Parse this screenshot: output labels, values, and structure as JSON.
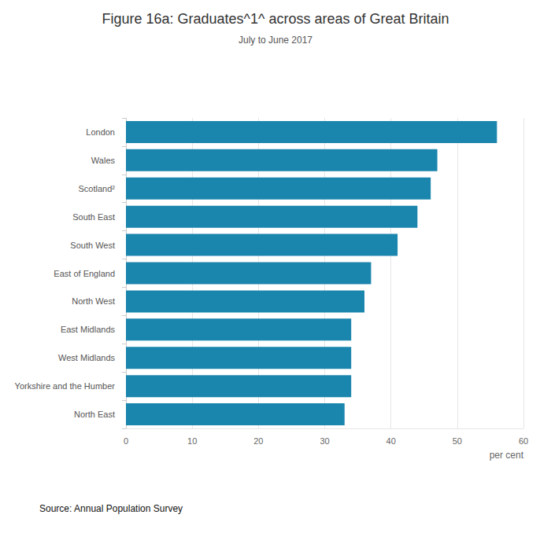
{
  "chart_data": {
    "type": "bar",
    "orientation": "horizontal",
    "title": "Figure 16a: Graduates^1^ across areas of Great Britain",
    "subtitle": "July to June 2017",
    "categories": [
      "London",
      "Wales",
      "Scotland²",
      "South East",
      "South West",
      "East of England",
      "North West",
      "East Midlands",
      "West Midlands",
      "Yorkshire and the Humber",
      "North East"
    ],
    "values": [
      56,
      47,
      46,
      44,
      41,
      37,
      36,
      34,
      34,
      34,
      33
    ],
    "color": "#1a85ad",
    "xlabel": "per cent",
    "xlim": [
      0,
      60
    ],
    "xticks": [
      0,
      10,
      20,
      30,
      40,
      50,
      60
    ],
    "grid": true,
    "annotations": [
      "Source: Annual Population Survey"
    ]
  }
}
